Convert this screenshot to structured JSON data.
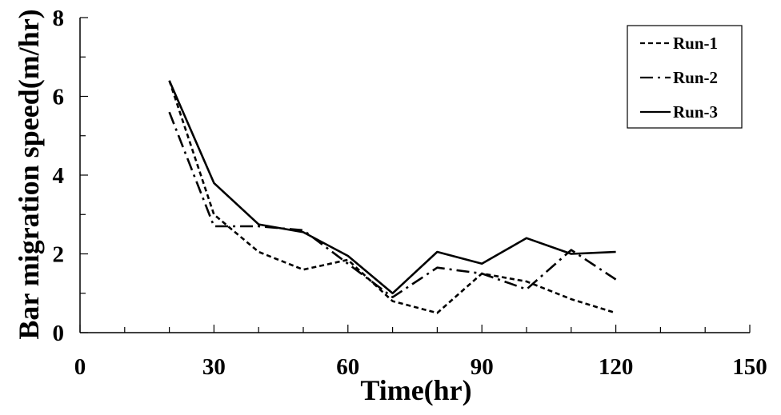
{
  "chart_data": {
    "type": "line",
    "title": "",
    "xlabel": "Time(hr)",
    "ylabel": "Bar migration speed(m/hr)",
    "xlim": [
      0,
      150
    ],
    "ylim": [
      0,
      8
    ],
    "xticks": [
      0,
      30,
      60,
      90,
      120,
      150
    ],
    "yticks": [
      0,
      2,
      4,
      6,
      8
    ],
    "xtick_labels": [
      "0",
      "30",
      "60",
      "90",
      "120",
      "150"
    ],
    "ytick_labels": [
      "0",
      "2",
      "4",
      "6",
      "8"
    ],
    "grid": false,
    "legend_position": "top-right",
    "x": [
      20,
      30,
      40,
      50,
      60,
      70,
      80,
      90,
      100,
      110,
      120
    ],
    "series": [
      {
        "name": "Run-1",
        "style": "dashed",
        "values": [
          6.4,
          3.0,
          2.05,
          1.6,
          1.85,
          0.8,
          0.5,
          1.5,
          1.3,
          0.85,
          0.5
        ]
      },
      {
        "name": "Run-2",
        "style": "dash-dot",
        "values": [
          5.6,
          2.7,
          2.7,
          2.6,
          1.75,
          0.9,
          1.65,
          1.5,
          1.1,
          2.1,
          1.35
        ]
      },
      {
        "name": "Run-3",
        "style": "solid",
        "values": [
          6.4,
          3.8,
          2.75,
          2.55,
          1.95,
          1.0,
          2.05,
          1.75,
          2.4,
          2.0,
          2.05
        ]
      }
    ]
  },
  "colors": {
    "line": "#000000",
    "background": "#ffffff"
  }
}
